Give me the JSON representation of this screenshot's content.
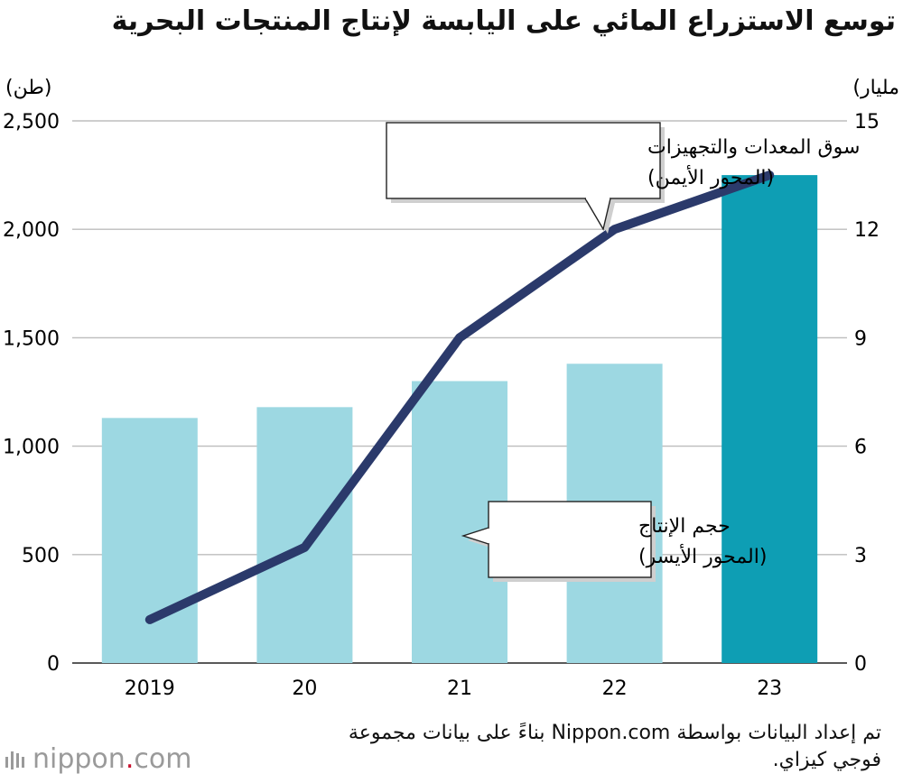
{
  "title": "توسع الاستزراع المائي على اليابسة لإنتاج المنتجات البحرية",
  "chart_data": {
    "type": "bar+line",
    "categories": [
      "2019",
      "20",
      "21",
      "22",
      "23"
    ],
    "series": [
      {
        "name": "حجم الإنتاج",
        "axis": "left",
        "type": "bar",
        "values": [
          1130,
          1180,
          1300,
          1380,
          2250
        ],
        "colors": [
          "#9dd8e2",
          "#9dd8e2",
          "#9dd8e2",
          "#9dd8e2",
          "#0e9eb4"
        ]
      },
      {
        "name": "سوق المعدات والتجهيزات",
        "axis": "right",
        "type": "line",
        "values": [
          1.2,
          3.2,
          9.0,
          12.0,
          13.5
        ],
        "color": "#2b3a6b"
      }
    ],
    "left_axis": {
      "unit": "(طن)",
      "ylim": [
        0,
        2500
      ],
      "ticks": [
        "0",
        "500",
        "1,000",
        "1,500",
        "2,000",
        "2,500"
      ],
      "tick_values": [
        0,
        500,
        1000,
        1500,
        2000,
        2500
      ]
    },
    "right_axis": {
      "unit": "(مليار",
      "ylim": [
        0,
        15
      ],
      "ticks": [
        "0",
        "3",
        "6",
        "9",
        "12",
        "15"
      ],
      "tick_values": [
        0,
        3,
        6,
        9,
        12,
        15
      ]
    },
    "annotations": [
      {
        "target": "line",
        "line1": "سوق المعدات والتجهيزات",
        "line2": "(المحور الأيمن)"
      },
      {
        "target": "bars",
        "line1": "حجم الإنتاج",
        "line2": "(المحور الأيسر)"
      }
    ],
    "grid": true
  },
  "source": "تم إعداد البيانات بواسطة Nippon.com بناءً على بيانات مجموعة فوجي كيزاي.",
  "logo": {
    "name": "nippon",
    "dot": ".",
    "suffix": "com"
  }
}
